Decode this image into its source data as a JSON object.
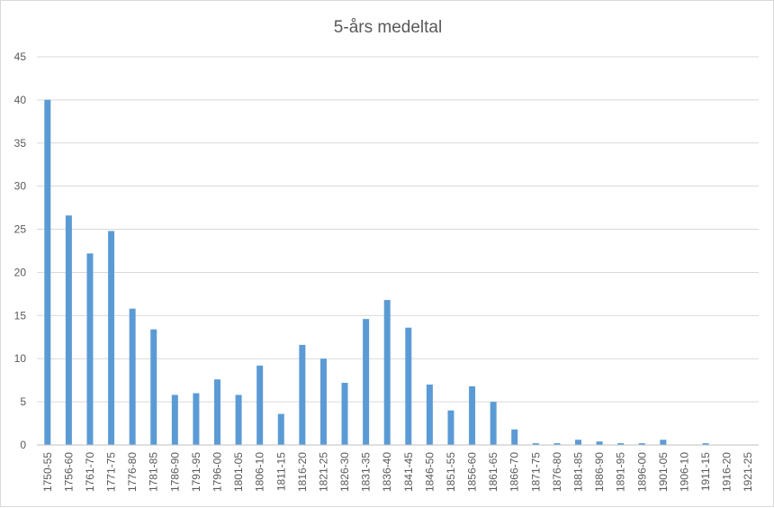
{
  "chart_data": {
    "type": "bar",
    "title": "5-års medeltal",
    "xlabel": "",
    "ylabel": "",
    "ylim": [
      0,
      45
    ],
    "yticks": [
      0,
      5,
      10,
      15,
      20,
      25,
      30,
      35,
      40,
      45
    ],
    "grid": true,
    "legend": "none",
    "bar_color": "#5b9bd5",
    "categories": [
      "1750-55",
      "1756-60",
      "1761-70",
      "1771-75",
      "1776-80",
      "1781-85",
      "1786-90",
      "1791-95",
      "1796-00",
      "1801-05",
      "1806-10",
      "1811-15",
      "1816-20",
      "1821-25",
      "1826-30",
      "1831-35",
      "1836-40",
      "1841-45",
      "1846-50",
      "1851-55",
      "1856-60",
      "1861-65",
      "1866-70",
      "1871-75",
      "1876-80",
      "1881-85",
      "1886-90",
      "1891-95",
      "1896-00",
      "1901-05",
      "1906-10",
      "1911-15",
      "1916-20",
      "1921-25"
    ],
    "values": [
      40,
      26.6,
      22.2,
      24.8,
      15.8,
      13.4,
      5.8,
      6,
      7.6,
      5.8,
      9.2,
      3.6,
      11.6,
      10,
      7.2,
      14.6,
      16.8,
      13.6,
      7,
      4,
      6.8,
      5,
      1.8,
      0.2,
      0.2,
      0.6,
      0.4,
      0.2,
      0.2,
      0.6,
      0,
      0.2,
      0,
      0
    ]
  }
}
